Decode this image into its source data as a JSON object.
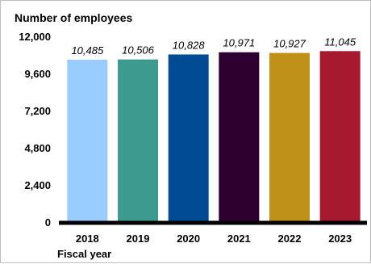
{
  "chart_data": {
    "type": "bar",
    "title": "Number of employees",
    "xlabel": "Fiscal year",
    "ylabel": "",
    "ylim": [
      0,
      12000
    ],
    "yticks": [
      0,
      2400,
      4800,
      7200,
      9600,
      12000
    ],
    "ytick_labels": [
      "0",
      "2,400",
      "4,800",
      "7,200",
      "9,600",
      "12,000"
    ],
    "categories": [
      "2018",
      "2019",
      "2020",
      "2021",
      "2022",
      "2023"
    ],
    "values": [
      10485,
      10506,
      10828,
      10971,
      10927,
      11045
    ],
    "data_labels": [
      "10,485",
      "10,506",
      "10,828",
      "10,971",
      "10,927",
      "11,045"
    ],
    "bar_colors": [
      "#99ccff",
      "#3d9a8e",
      "#004b93",
      "#2e0030",
      "#bf9118",
      "#a6192e"
    ],
    "grid": false,
    "legend": "none"
  }
}
